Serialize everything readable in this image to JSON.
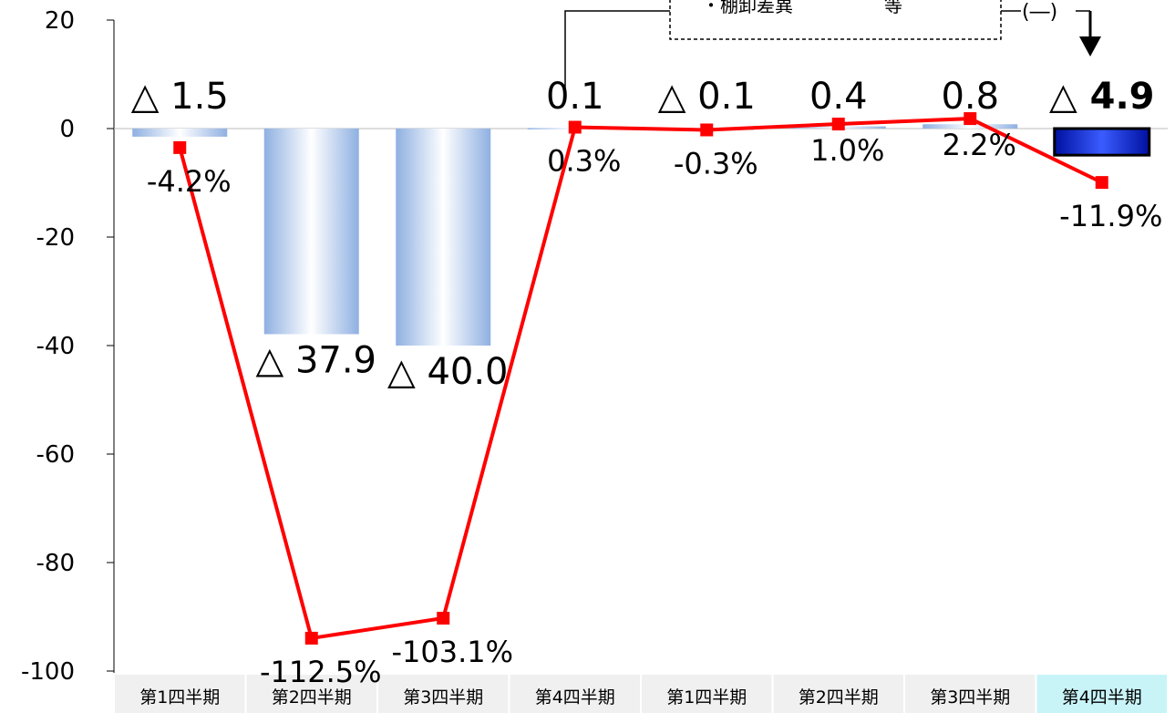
{
  "chart_data": {
    "type": "bar",
    "categories": [
      "第1四半期",
      "第2四半期",
      "第3四半期",
      "第4四半期",
      "第1四半期",
      "第2四半期",
      "第3四半期",
      "第4四半期"
    ],
    "ylim": [
      -100,
      20
    ],
    "yticks": [
      "20",
      "0",
      "-20",
      "-40",
      "-60",
      "-80",
      "-100"
    ],
    "series": [
      {
        "type": "bar",
        "values": [
          -1.5,
          -37.9,
          -40.0,
          0.1,
          -0.1,
          0.4,
          0.8,
          -4.9
        ],
        "labels": [
          "△ 1.5",
          "△ 37.9",
          "△ 40.0",
          "0.1",
          "△ 0.1",
          "0.4",
          "0.8",
          "△ 4.9"
        ]
      },
      {
        "type": "line",
        "values_pct": [
          -4.2,
          -112.5,
          -103.1,
          0.3,
          -0.3,
          1.0,
          2.2,
          -11.9
        ],
        "labels": [
          "-4.2%",
          "-112.5%",
          "-103.1%",
          "0.3%",
          "-0.3%",
          "1.0%",
          "2.2%",
          "-11.9%"
        ],
        "secondary_axis_range": [
          -100,
          20
        ]
      }
    ],
    "highlight_category_index": 7,
    "annotation": {
      "box_text": "・棚卸差異　　　　　等",
      "bracket_text": "(―)"
    },
    "colors": {
      "bar_gradient": "#9dbbe6",
      "bar_highlight": "#1f3fff",
      "line": "#ff0000",
      "highlight_cell": "#c8f4f8",
      "cell": "#f0f0f0"
    }
  }
}
